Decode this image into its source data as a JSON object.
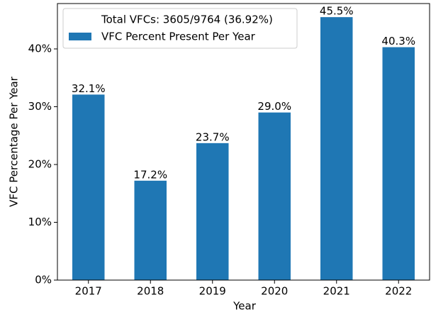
{
  "chart_data": {
    "type": "bar",
    "x_label": "Year",
    "y_label": "VFC Percentage Per Year",
    "annotation": "Total VFCs: 3605/9764 (36.92%)",
    "categories": [
      "2017",
      "2018",
      "2019",
      "2020",
      "2021",
      "2022"
    ],
    "series": [
      {
        "name": "VFC Percent Present Per Year",
        "color": "#1f77b4",
        "values": [
          32.1,
          17.2,
          23.7,
          29.0,
          45.5,
          40.3
        ],
        "value_labels": [
          "32.1%",
          "17.2%",
          "23.7%",
          "29.0%",
          "45.5%",
          "40.3%"
        ]
      }
    ],
    "ylim": [
      0,
      47.85
    ],
    "yticks": [
      {
        "value": 0,
        "label": "0%"
      },
      {
        "value": 10,
        "label": "10%"
      },
      {
        "value": 20,
        "label": "20%"
      },
      {
        "value": 30,
        "label": "30%"
      },
      {
        "value": 40,
        "label": "40%"
      }
    ],
    "legend": "upper left"
  }
}
